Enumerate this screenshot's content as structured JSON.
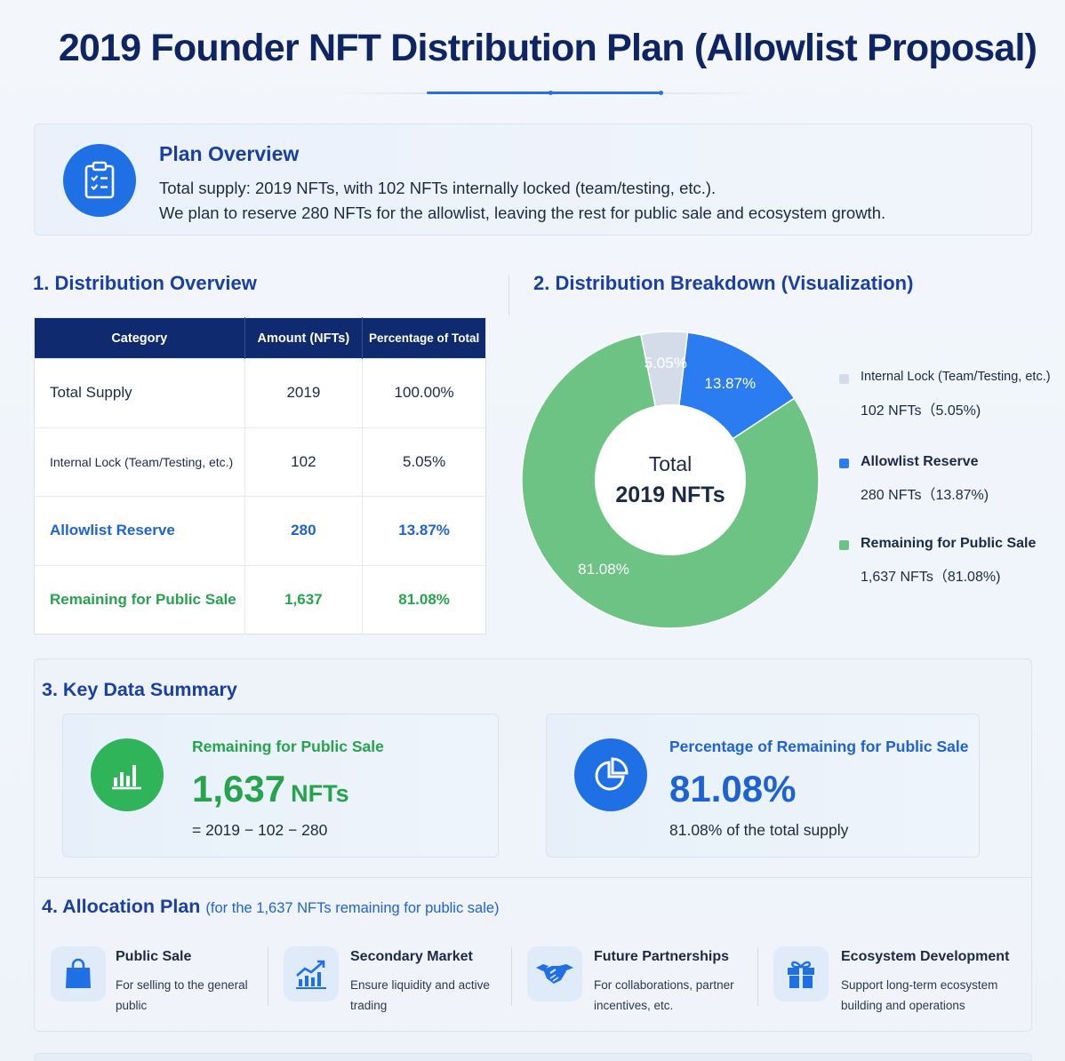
{
  "title": "2019 Founder NFT Distribution Plan (Allowlist Proposal)",
  "colors": {
    "navy": "#0f2a6e",
    "blue": "#2b7cf0",
    "green": "#6cc384",
    "gray": "#d4dcea",
    "accent": "#1a3fa0"
  },
  "overview": {
    "heading": "Plan Overview",
    "icon": "clipboard-icon",
    "line1": "Total supply: 2019 NFTs, with 102 NFTs internally locked (team/testing, etc.).",
    "line2": "We plan to reserve 280 NFTs for the allowlist, leaving the rest for public sale and ecosystem growth."
  },
  "distribution": {
    "heading": "1. Distribution Overview",
    "columns": [
      "Category",
      "Amount (NFTs)",
      "Percentage of Total"
    ],
    "rows": [
      {
        "category": "Total Supply",
        "amount": "2019",
        "percent": "100.00%"
      },
      {
        "category": "Internal Lock (Team/Testing, etc.)",
        "amount": "102",
        "percent": "5.05%"
      },
      {
        "category": "Allowlist Reserve",
        "amount": "280",
        "percent": "13.87%"
      },
      {
        "category": "Remaining for Public Sale",
        "amount": "1,637",
        "percent": "81.08%"
      }
    ]
  },
  "breakdown": {
    "heading": "2. Distribution Breakdown (Visualization)",
    "center_line1": "Total",
    "center_line2": "2019 NFTs"
  },
  "chart_data": {
    "type": "pie",
    "title": "2. Distribution Breakdown (Visualization)",
    "center_label": "Total 2019 NFTs",
    "slices": [
      {
        "name": "Internal Lock (Team/Testing, etc.)",
        "value": 102,
        "percent": 5.05,
        "label": "5.05%",
        "legend_value": "102 NFTs（5.05%)",
        "color": "#d4dcea",
        "label_color": "#ffffff"
      },
      {
        "name": "Allowlist Reserve",
        "value": 280,
        "percent": 13.87,
        "label": "13.87%",
        "legend_value": "280 NFTs（13.87%)",
        "color": "#2b7cf0",
        "label_color": "#ffffff"
      },
      {
        "name": "Remaining for Public Sale",
        "value": 1637,
        "percent": 81.08,
        "label": "81.08%",
        "legend_value": "1,637 NFTs（81.08%)",
        "color": "#6cc384",
        "label_color": "#ffffff"
      }
    ],
    "legend_position": "right"
  },
  "summary": {
    "heading": "3. Key Data Summary",
    "card1": {
      "label": "Remaining for Public Sale",
      "value": "1,637",
      "unit": "NFTs",
      "formula": "= 2019 − 102 − 280",
      "icon": "bar-chart-icon"
    },
    "card2": {
      "label": "Percentage of Remaining for Public Sale",
      "value": "81.08%",
      "note": "81.08% of the total supply",
      "icon": "pie-chart-icon"
    }
  },
  "allocation": {
    "heading": "4. Allocation Plan",
    "note": "(for the 1,637 NFTs remaining for public sale)",
    "items": [
      {
        "title": "Public Sale",
        "desc": "For selling to the general public",
        "icon": "shopping-bag-icon"
      },
      {
        "title": "Secondary Market",
        "desc": "Ensure liquidity and active trading",
        "icon": "trending-chart-icon"
      },
      {
        "title": "Future Partnerships",
        "desc": "For collaborations, partner incentives, etc.",
        "icon": "handshake-icon"
      },
      {
        "title": "Ecosystem Development",
        "desc": "Support long-term ecosystem building and operations",
        "icon": "gift-icon"
      }
    ]
  }
}
